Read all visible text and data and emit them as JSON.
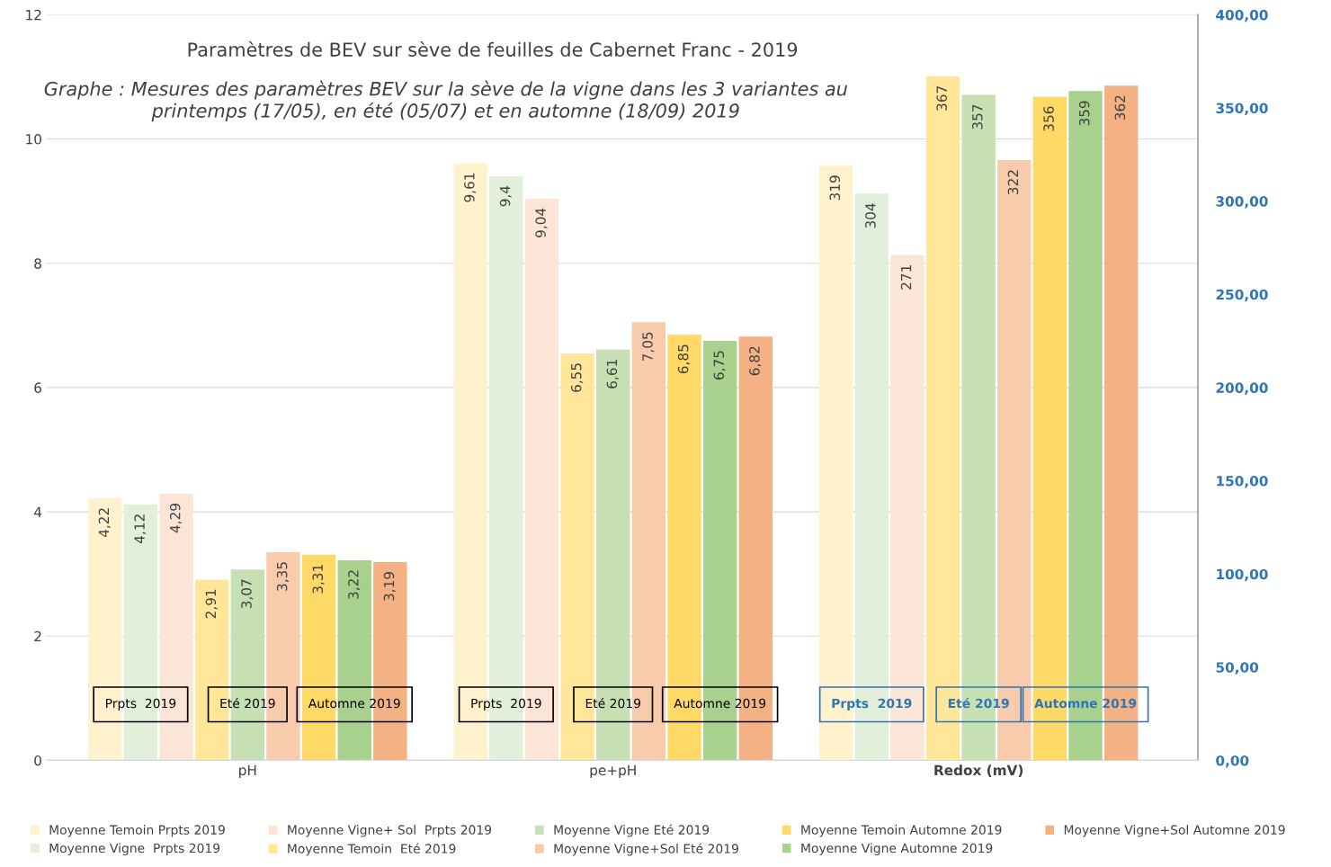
{
  "chart_data": {
    "type": "bar",
    "title": "Paramètres de BEV sur sève de feuilles de Cabernet Franc - 2019",
    "subtitle": "Graphe : Mesures des paramètres BEV sur la sève de la vigne dans les 3 variantes au printemps (17/05), en été (05/07) et en automne (18/09) 2019",
    "categories": [
      "pH",
      "pe+pH",
      "Redox (mV)"
    ],
    "series": [
      {
        "name": "Moyenne Temoin Prpts 2019",
        "color": "#fff2cc",
        "values": [
          4.22,
          9.61,
          null
        ],
        "value_labels": [
          "4,22",
          "9,61",
          null
        ]
      },
      {
        "name": "Moyenne Vigne  Prpts 2019",
        "color": "#e2efda",
        "values": [
          4.12,
          9.4,
          null
        ],
        "value_labels": [
          "4,12",
          "9,4",
          null
        ]
      },
      {
        "name": "Moyenne Vigne+ Sol  Prpts 2019",
        "color": "#fbe5d6",
        "values": [
          4.29,
          9.04,
          null
        ],
        "value_labels": [
          "4,29",
          "9,04",
          null
        ]
      },
      {
        "name": "Moyenne Temoin  Eté 2019",
        "color": "#ffe699",
        "values": [
          2.91,
          6.55,
          null
        ],
        "value_labels": [
          "2,91",
          "6,55",
          null
        ]
      },
      {
        "name": "Moyenne Vigne Eté 2019",
        "color": "#c6e0b4",
        "values": [
          3.07,
          6.61,
          null
        ],
        "value_labels": [
          "3,07",
          "6,61",
          null
        ]
      },
      {
        "name": "Moyenne Vigne+Sol Eté 2019",
        "color": "#f8cbad",
        "values": [
          3.35,
          7.05,
          null
        ],
        "value_labels": [
          "3,35",
          "7,05",
          null
        ]
      },
      {
        "name": "Moyenne Temoin Automne 2019",
        "color": "#ffd966",
        "values": [
          3.31,
          6.85,
          null
        ],
        "value_labels": [
          "3,31",
          "6,85",
          null
        ]
      },
      {
        "name": "Moyenne Vigne Automne 2019",
        "color": "#a9d18e",
        "values": [
          3.22,
          6.75,
          null
        ],
        "value_labels": [
          "3,22",
          "6,75",
          null
        ]
      },
      {
        "name": "Moyenne Vigne+Sol Automne 2019",
        "color": "#f4b183",
        "values": [
          3.19,
          6.82,
          null
        ],
        "value_labels": [
          "3,19",
          "6,82",
          null
        ]
      },
      {
        "color": "#fff2cc",
        "axis": "y2",
        "values": [
          null,
          null,
          319
        ],
        "value_labels": [
          null,
          null,
          "319"
        ]
      },
      {
        "color": "#e2efda",
        "axis": "y2",
        "values": [
          null,
          null,
          304
        ],
        "value_labels": [
          null,
          null,
          "304"
        ]
      },
      {
        "color": "#fbe5d6",
        "axis": "y2",
        "values": [
          null,
          null,
          271
        ],
        "value_labels": [
          null,
          null,
          "271"
        ]
      },
      {
        "color": "#ffe699",
        "axis": "y2",
        "values": [
          null,
          null,
          367
        ],
        "value_labels": [
          null,
          null,
          "367"
        ]
      },
      {
        "color": "#c6e0b4",
        "axis": "y2",
        "values": [
          null,
          null,
          357
        ],
        "value_labels": [
          null,
          null,
          "357"
        ]
      },
      {
        "color": "#f8cbad",
        "axis": "y2",
        "values": [
          null,
          null,
          322
        ],
        "value_labels": [
          null,
          null,
          "322"
        ]
      },
      {
        "color": "#ffd966",
        "axis": "y2",
        "values": [
          null,
          null,
          356
        ],
        "value_labels": [
          null,
          null,
          "356"
        ]
      },
      {
        "color": "#a9d18e",
        "axis": "y2",
        "values": [
          null,
          null,
          359
        ],
        "value_labels": [
          null,
          null,
          "359"
        ]
      },
      {
        "color": "#f4b183",
        "axis": "y2",
        "values": [
          null,
          null,
          362
        ],
        "value_labels": [
          null,
          null,
          "362"
        ]
      }
    ],
    "ylim": [
      0,
      12
    ],
    "yticks": [
      0,
      2,
      4,
      6,
      8,
      10,
      12
    ],
    "y2lim": [
      0,
      400
    ],
    "y2ticks": [
      {
        "value": 0,
        "label": "0,00"
      },
      {
        "value": 50,
        "label": "50,00"
      },
      {
        "value": 100,
        "label": "100,00"
      },
      {
        "value": 150,
        "label": "150,00"
      },
      {
        "value": 200,
        "label": "200,00"
      },
      {
        "value": 250,
        "label": "250,00"
      },
      {
        "value": 300,
        "label": "300,00"
      },
      {
        "value": 350,
        "label": "350,00"
      },
      {
        "value": 400,
        "label": "400,00"
      }
    ],
    "annotations": [
      "Prpts  2019",
      "Eté 2019",
      "Automne 2019",
      "Prpts  2019",
      "Eté 2019",
      "Automne 2019",
      "Prpts  2019",
      "Eté 2019",
      "Automne 2019"
    ],
    "grid": "y",
    "legend": "bottom"
  }
}
